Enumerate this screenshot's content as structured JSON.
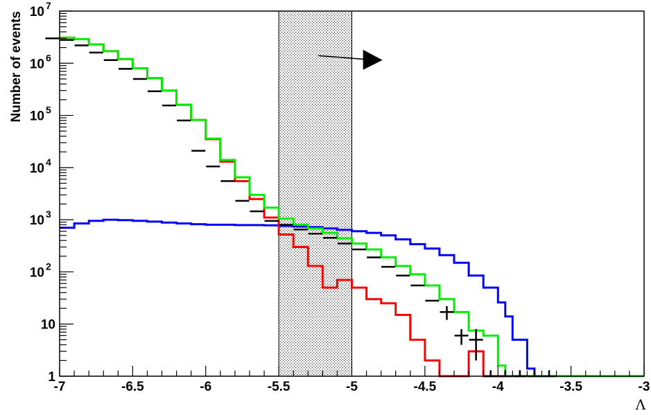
{
  "chart_data": {
    "type": "line",
    "xlabel": "Λ",
    "ylabel": "Number of events",
    "xlim": [
      -7,
      -3
    ],
    "ylim": [
      1,
      10000000
    ],
    "yscale": "log",
    "grid": false,
    "legend": "none",
    "x_ticks": [
      {
        "v": -7,
        "label": "-7"
      },
      {
        "v": -6.5,
        "label": "-6.5"
      },
      {
        "v": -6,
        "label": "-6"
      },
      {
        "v": -5.5,
        "label": "-5.5"
      },
      {
        "v": -5,
        "label": "-5"
      },
      {
        "v": -4.5,
        "label": "-4.5"
      },
      {
        "v": -4,
        "label": "-4"
      },
      {
        "v": -3.5,
        "label": "-3.5"
      },
      {
        "v": -3,
        "label": "-3"
      }
    ],
    "y_ticks": [
      {
        "v": 1,
        "base": "1",
        "exp": ""
      },
      {
        "v": 10,
        "base": "10",
        "exp": ""
      },
      {
        "v": 100,
        "base": "10",
        "exp": "2"
      },
      {
        "v": 1000,
        "base": "10",
        "exp": "3"
      },
      {
        "v": 10000,
        "base": "10",
        "exp": "4"
      },
      {
        "v": 100000,
        "base": "10",
        "exp": "5"
      },
      {
        "v": 1000000,
        "base": "10",
        "exp": "6"
      },
      {
        "v": 10000000,
        "base": "10",
        "exp": "7"
      }
    ],
    "bin_edges": [
      -7,
      -6.9,
      -6.8,
      -6.7,
      -6.6,
      -6.5,
      -6.4,
      -6.3,
      -6.2,
      -6.1,
      -6,
      -5.9,
      -5.8,
      -5.7,
      -5.6,
      -5.5,
      -5.4,
      -5.3,
      -5.2,
      -5.1,
      -5,
      -4.9,
      -4.8,
      -4.7,
      -4.6,
      -4.5,
      -4.4,
      -4.3,
      -4.2,
      -4.1,
      -4,
      -3.95,
      -3.9,
      -3.85,
      -3.8,
      -3.75,
      -3.7,
      -3.65,
      -3.6,
      -3.5,
      -3.4,
      -3.3,
      -3.2,
      -3.1,
      -3
    ],
    "series": [
      {
        "color": "#0000ff",
        "values": [
          700,
          850,
          950,
          1000,
          980,
          950,
          920,
          880,
          850,
          820,
          800,
          800,
          790,
          790,
          780,
          760,
          740,
          720,
          680,
          640,
          600,
          560,
          500,
          420,
          340,
          280,
          210,
          150,
          85,
          50,
          26,
          14,
          5,
          5,
          1.4,
          1,
          1,
          1,
          1,
          1,
          1,
          1,
          1,
          1
        ]
      },
      {
        "color": "#ff0000",
        "values": [
          3100000,
          2900000,
          2300000,
          1700000,
          1200000,
          800000,
          520000,
          300000,
          160000,
          82000,
          35000,
          13000,
          5500,
          2500,
          1100,
          520,
          300,
          130,
          50,
          70,
          50,
          30,
          25,
          15,
          5,
          2,
          0.5,
          0.5,
          3,
          1,
          0.5,
          0.5,
          0.5,
          0.5,
          0.5,
          0.5,
          0.5,
          0.5,
          0.5,
          0.5,
          0.5,
          0.5,
          0.5,
          0.5
        ]
      },
      {
        "color": "#00ee00",
        "values": [
          3100000,
          2900000,
          2300000,
          1700000,
          1200000,
          800000,
          520000,
          300000,
          160000,
          82000,
          36000,
          14000,
          6500,
          3000,
          1700,
          1050,
          800,
          680,
          560,
          440,
          350,
          270,
          190,
          130,
          90,
          55,
          30,
          17,
          7.5,
          6,
          1.6,
          1,
          1,
          1,
          1,
          1,
          1,
          1,
          1,
          1,
          1,
          1,
          1,
          1
        ]
      }
    ],
    "data_points": {
      "color": "#000000",
      "x": [
        -7.05,
        -6.95,
        -6.85,
        -6.75,
        -6.65,
        -6.55,
        -6.45,
        -6.35,
        -6.25,
        -6.15,
        -6.05,
        -5.95,
        -5.85,
        -5.75,
        -5.65,
        -5.55,
        -5.45,
        -5.35,
        -5.25,
        -5.15,
        -5.05,
        -4.95,
        -4.85,
        -4.75,
        -4.65,
        -4.55,
        -4.45,
        -4.35,
        -4.25,
        -4.15,
        -4.05,
        -3.95,
        -3.85,
        -3.85,
        -3.75,
        -3.65
      ],
      "y": [
        3000000,
        2800000,
        2200000,
        1600000,
        1150000,
        780000,
        500000,
        290000,
        155000,
        80000,
        21000,
        10500,
        5500,
        2300,
        1450,
        950,
        800,
        650,
        540,
        450,
        350,
        270,
        190,
        125,
        85,
        55,
        28,
        17,
        6,
        5,
        1,
        1,
        1,
        1,
        1,
        1
      ],
      "err": [
        0,
        0,
        0,
        0,
        0,
        0,
        0,
        0,
        0,
        0,
        0,
        0,
        0,
        0,
        0,
        0,
        0,
        0,
        0,
        0,
        0,
        0,
        0,
        0,
        0,
        0,
        0,
        5,
        2,
        3,
        0.3,
        0.3,
        0.3,
        0.3,
        0.3,
        0.3
      ]
    },
    "shaded_region": {
      "x0": -5.5,
      "x1": -5.0
    },
    "arrow": {
      "x0": -5.23,
      "x1": -4.8,
      "y0": 1400000,
      "y1": 1150000
    }
  }
}
